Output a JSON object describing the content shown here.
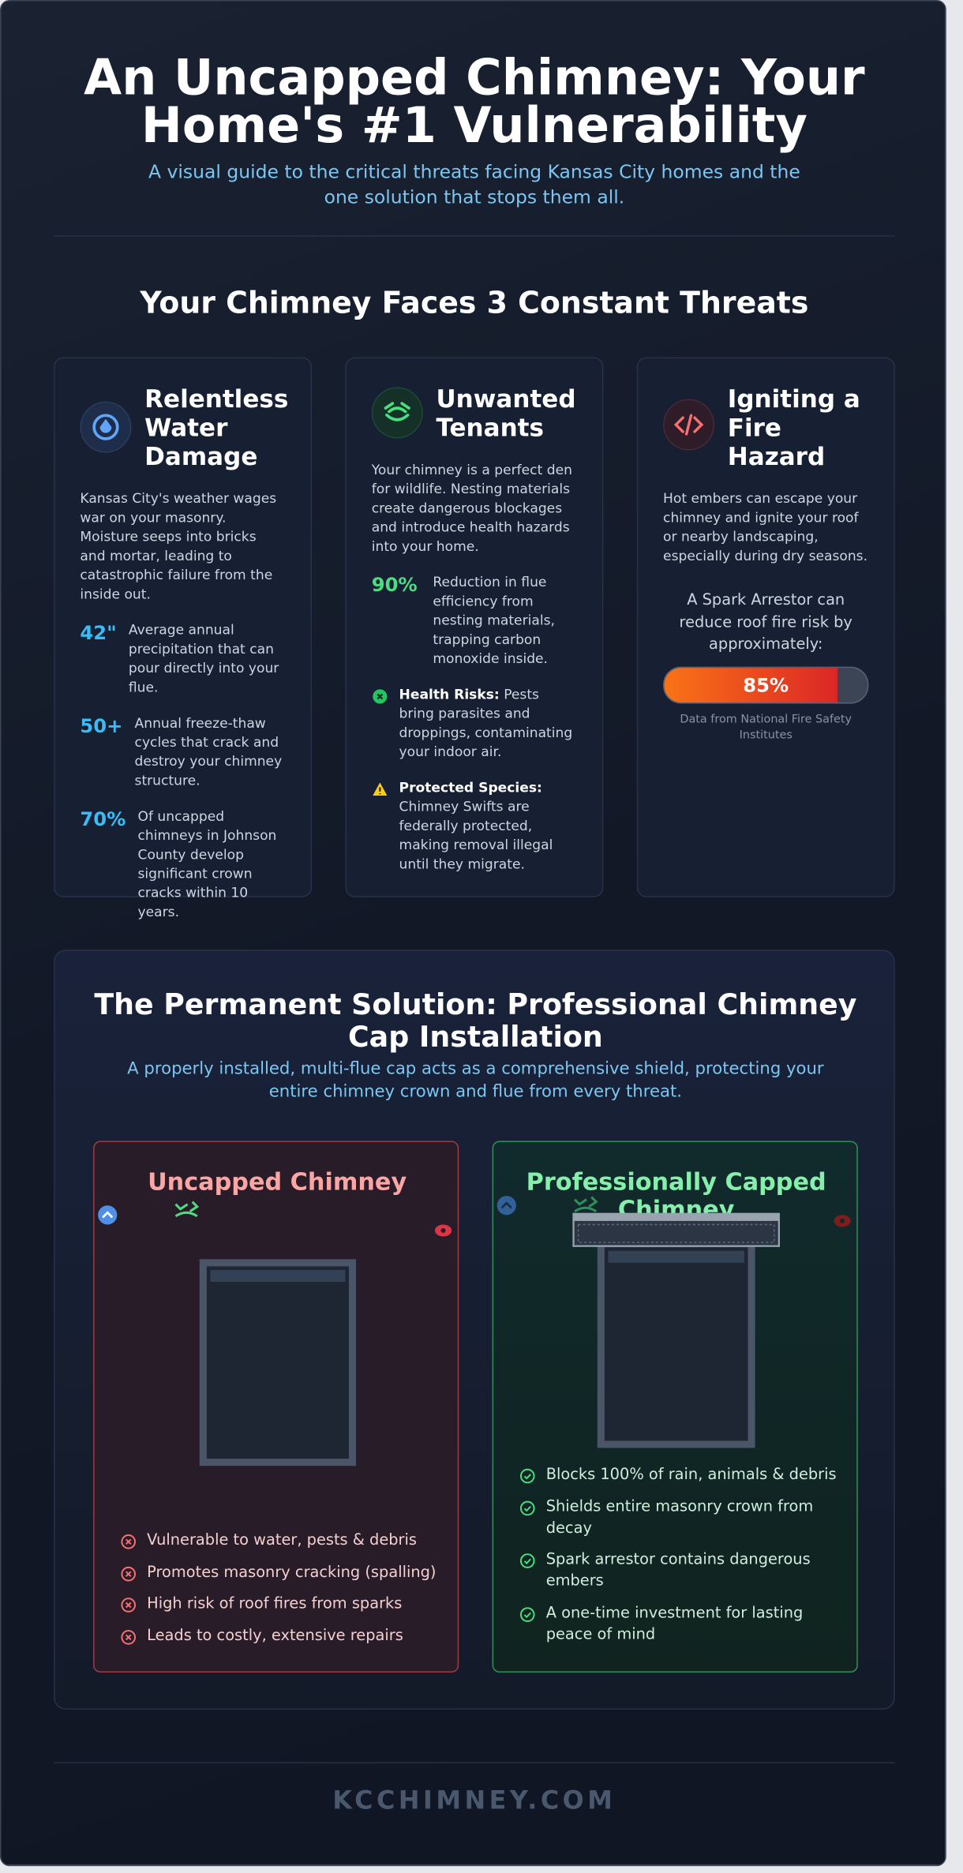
{
  "header": {
    "title": "An Uncapped Chimney: Your Home's #1 Vulnerability",
    "subtitle": "A visual guide to the critical threats facing Kansas City homes and the one solution that stops them all."
  },
  "threats": {
    "heading": "Your Chimney Faces 3 Constant Threats",
    "cards": [
      {
        "title": "Relentless Water Damage",
        "body": "Kansas City's weather wages war on your masonry. Moisture seeps into bricks and mortar, leading to catastrophic failure from the inside out.",
        "stats": [
          {
            "value": "42\"",
            "text": "Average annual precipitation that can pour directly into your flue."
          },
          {
            "value": "50+",
            "text": "Annual freeze-thaw cycles that crack and destroy your chimney structure."
          },
          {
            "value": "70%",
            "text": "Of uncapped chimneys in Johnson County develop significant crown cracks within 10 years."
          }
        ]
      },
      {
        "title": "Unwanted Tenants",
        "body": "Your chimney is a perfect den for wildlife. Nesting materials create dangerous blockages and introduce health hazards into your home.",
        "stat": {
          "value": "90%",
          "text": "Reduction in flue efficiency from nesting materials, trapping carbon monoxide inside."
        },
        "notes": [
          {
            "label": "Health Risks:",
            "text": "Pests bring parasites and droppings, contaminating your indoor air."
          },
          {
            "label": "Protected Species:",
            "text": "Chimney Swifts are federally protected, making removal illegal until they migrate."
          }
        ]
      },
      {
        "title": "Igniting a Fire Hazard",
        "body": "Hot embers can escape your chimney and ignite your roof or nearby landscaping, especially during dry seasons.",
        "spark": {
          "text": "A Spark Arrestor can reduce roof fire risk by approximately:",
          "value": 85,
          "value_label": "85%",
          "source": "Data from National Fire Safety Institutes"
        }
      }
    ]
  },
  "solution": {
    "title": "The Permanent Solution: Professional Chimney Cap Installation",
    "subtitle": "A properly installed, multi-flue cap acts as a comprehensive shield, protecting your entire chimney crown and flue from every threat.",
    "uncapped": {
      "title": "Uncapped Chimney",
      "items": [
        "Vulnerable to water, pests & debris",
        "Promotes masonry cracking (spalling)",
        "High risk of roof fires from sparks",
        "Leads to costly, extensive repairs"
      ]
    },
    "capped": {
      "title": "Professionally Capped Chimney",
      "items": [
        "Blocks 100% of rain, animals & debris",
        "Shields entire masonry crown from decay",
        "Spark arrestor contains dangerous embers",
        "A one-time investment for lasting peace of mind"
      ]
    }
  },
  "footer": {
    "brand": "KCCHIMNEY.COM"
  }
}
